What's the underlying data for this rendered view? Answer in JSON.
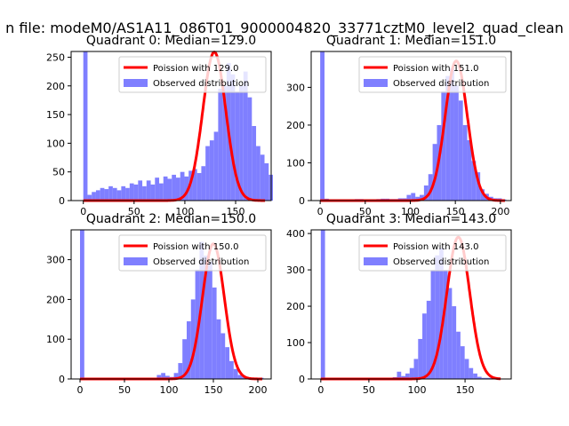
{
  "figure_title": "n file: modeM0/AS1A11_086T01_9000004820_33771cztM0_level2_quad_clean",
  "colors": {
    "histogram": "#7f7fff",
    "fit_line": "#ff0000",
    "background": "#ffffff",
    "axis": "#000000"
  },
  "chart_data": [
    {
      "type": "bar",
      "title": "Quadrant 0: Median=129.0",
      "xlim": [
        -12,
        185
      ],
      "ylim": [
        0,
        260
      ],
      "xticks": [
        0,
        50,
        100,
        150
      ],
      "yticks": [
        0,
        50,
        100,
        150,
        200,
        250
      ],
      "legend": {
        "fit": "Poission with 129.0",
        "hist": "Observed distribution",
        "placement": "upper right"
      },
      "histogram": {
        "start": 0,
        "bin_width": 4.15,
        "values": [
          260,
          10,
          15,
          18,
          22,
          20,
          25,
          22,
          18,
          25,
          22,
          30,
          28,
          35,
          25,
          35,
          28,
          40,
          30,
          42,
          38,
          45,
          40,
          50,
          42,
          52,
          55,
          48,
          60,
          95,
          105,
          120,
          195,
          200,
          240,
          220,
          190,
          200,
          225,
          180,
          130,
          95,
          80,
          65,
          45
        ]
      },
      "fit": {
        "peak": 259,
        "mean": 129.0,
        "x_range": [
          0,
          179
        ]
      }
    },
    {
      "type": "bar",
      "title": "Quadrant 1: Median=151.0",
      "xlim": [
        -10,
        212
      ],
      "ylim": [
        0,
        395
      ],
      "xticks": [
        0,
        50,
        100,
        150,
        200
      ],
      "yticks": [
        0,
        100,
        200,
        300
      ],
      "legend": {
        "fit": "Poission with 151.0",
        "hist": "Observed distribution",
        "placement": "upper right"
      },
      "histogram": {
        "start": 0,
        "bin_width": 4.8,
        "values": [
          395,
          5,
          3,
          3,
          3,
          3,
          3,
          3,
          4,
          4,
          3,
          3,
          3,
          4,
          5,
          5,
          4,
          4,
          6,
          6,
          15,
          20,
          10,
          15,
          40,
          70,
          150,
          200,
          290,
          330,
          350,
          305,
          265,
          200,
          160,
          105,
          75,
          30,
          18,
          10,
          6,
          6,
          3
        ]
      },
      "fit": {
        "peak": 370,
        "mean": 151.0,
        "x_range": [
          0,
          205
        ]
      }
    },
    {
      "type": "bar",
      "title": "Quadrant 2: Median=150.0",
      "xlim": [
        -10,
        215
      ],
      "ylim": [
        0,
        375
      ],
      "xticks": [
        0,
        50,
        100,
        150,
        200
      ],
      "yticks": [
        0,
        100,
        200,
        300
      ],
      "legend": {
        "fit": "Poission with 150.0",
        "hist": "Observed distribution",
        "placement": "upper right"
      },
      "histogram": {
        "start": 0,
        "bin_width": 4.8,
        "values": [
          375,
          3,
          3,
          3,
          3,
          3,
          3,
          3,
          3,
          3,
          3,
          3,
          3,
          3,
          3,
          3,
          3,
          3,
          10,
          15,
          8,
          5,
          15,
          40,
          100,
          145,
          200,
          275,
          345,
          310,
          295,
          230,
          150,
          115,
          80,
          45,
          25,
          10,
          5,
          3,
          3,
          3,
          3
        ]
      },
      "fit": {
        "peak": 340,
        "mean": 150.0,
        "x_range": [
          0,
          205
        ]
      }
    },
    {
      "type": "bar",
      "title": "Quadrant 3: Median=143.0",
      "xlim": [
        -10,
        198
      ],
      "ylim": [
        0,
        410
      ],
      "xticks": [
        0,
        50,
        100,
        150
      ],
      "yticks": [
        0,
        100,
        200,
        300,
        400
      ],
      "legend": {
        "fit": "Poission with 143.0",
        "hist": "Observed distribution",
        "placement": "upper right"
      },
      "histogram": {
        "start": 0,
        "bin_width": 4.4,
        "values": [
          410,
          3,
          3,
          3,
          3,
          3,
          3,
          3,
          3,
          3,
          3,
          3,
          3,
          3,
          3,
          3,
          3,
          5,
          20,
          8,
          15,
          30,
          55,
          110,
          180,
          215,
          300,
          340,
          360,
          300,
          250,
          200,
          130,
          90,
          55,
          30,
          15,
          6,
          3,
          3,
          3,
          3
        ]
      },
      "fit": {
        "peak": 390,
        "mean": 143.0,
        "x_range": [
          0,
          187
        ]
      }
    }
  ]
}
